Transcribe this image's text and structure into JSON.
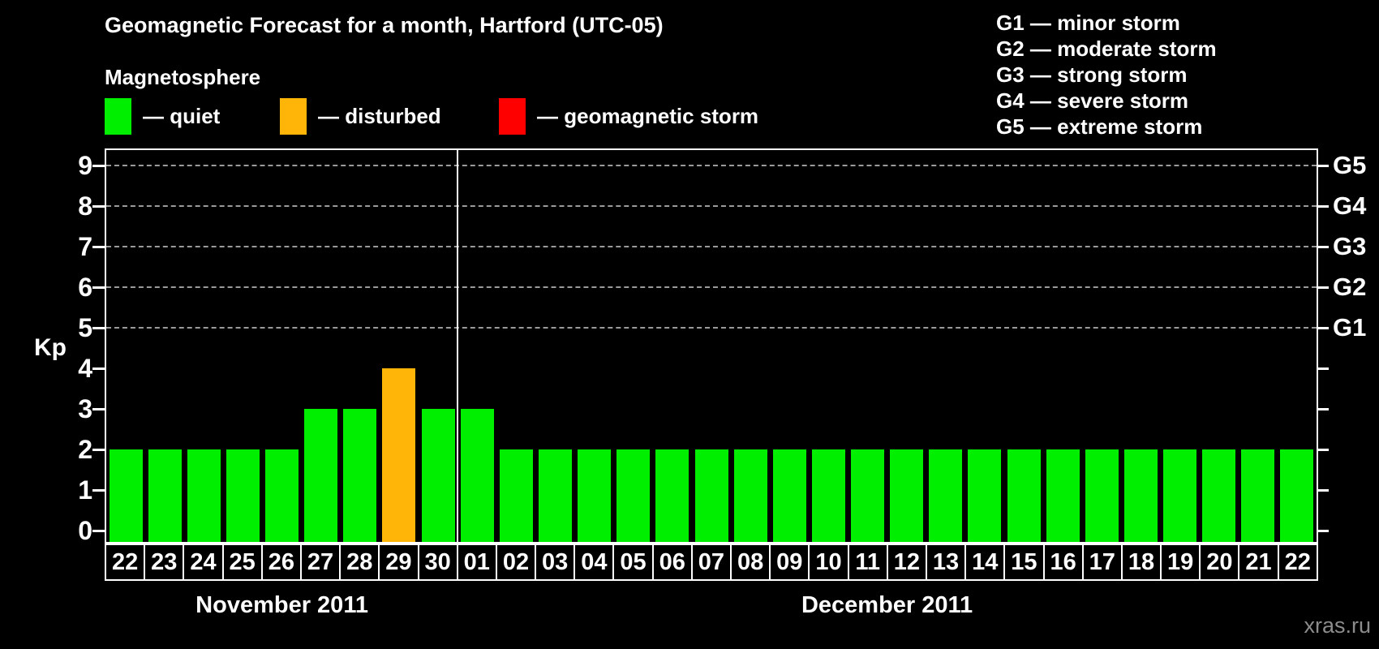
{
  "header": {
    "title": "Geomagnetic Forecast for a month, Hartford (UTC-05)",
    "subtitle": "Magnetosphere"
  },
  "legend": {
    "items": [
      {
        "status": "quiet",
        "label": "— quiet",
        "color": "#00ee00"
      },
      {
        "status": "disturbed",
        "label": "— disturbed",
        "color": "#ffb408"
      },
      {
        "status": "storm",
        "label": "— geomagnetic storm",
        "color": "#ff0000"
      }
    ]
  },
  "storm_scale_legend": [
    {
      "label": "G1 — minor storm"
    },
    {
      "label": "G2 — moderate storm"
    },
    {
      "label": "G3 — strong storm"
    },
    {
      "label": "G4 — severe storm"
    },
    {
      "label": "G5 — extreme storm"
    }
  ],
  "watermark": "xras.ru",
  "chart_data": {
    "type": "bar",
    "y_axis": {
      "label": "Kp",
      "ticks": [
        0,
        1,
        2,
        3,
        4,
        5,
        6,
        7,
        8,
        9
      ],
      "range": [
        0,
        9.4
      ]
    },
    "right_axis": {
      "labels": [
        {
          "kp": 5,
          "g": "G1"
        },
        {
          "kp": 6,
          "g": "G2"
        },
        {
          "kp": 7,
          "g": "G3"
        },
        {
          "kp": 8,
          "g": "G4"
        },
        {
          "kp": 9,
          "g": "G5"
        }
      ]
    },
    "gridlines_at": [
      5,
      6,
      7,
      8,
      9
    ],
    "grid_style": "dashed",
    "legend_position": "top-left",
    "status_colors": {
      "quiet": "#00ee00",
      "disturbed": "#ffb408",
      "storm": "#ff0000"
    },
    "months": [
      {
        "label": "November 2011",
        "days": [
          "22",
          "23",
          "24",
          "25",
          "26",
          "27",
          "28",
          "29",
          "30"
        ],
        "values": [
          2,
          2,
          2,
          2,
          2,
          3,
          3,
          4,
          3
        ],
        "statuses": [
          "quiet",
          "quiet",
          "quiet",
          "quiet",
          "quiet",
          "quiet",
          "quiet",
          "disturbed",
          "quiet"
        ]
      },
      {
        "label": "December 2011",
        "days": [
          "01",
          "02",
          "03",
          "04",
          "05",
          "06",
          "07",
          "08",
          "09",
          "10",
          "11",
          "12",
          "13",
          "14",
          "15",
          "16",
          "17",
          "18",
          "19",
          "20",
          "21",
          "22"
        ],
        "values": [
          3,
          2,
          2,
          2,
          2,
          2,
          2,
          2,
          2,
          2,
          2,
          2,
          2,
          2,
          2,
          2,
          2,
          2,
          2,
          2,
          2,
          2
        ],
        "statuses": [
          "quiet",
          "quiet",
          "quiet",
          "quiet",
          "quiet",
          "quiet",
          "quiet",
          "quiet",
          "quiet",
          "quiet",
          "quiet",
          "quiet",
          "quiet",
          "quiet",
          "quiet",
          "quiet",
          "quiet",
          "quiet",
          "quiet",
          "quiet",
          "quiet",
          "quiet"
        ]
      }
    ]
  }
}
